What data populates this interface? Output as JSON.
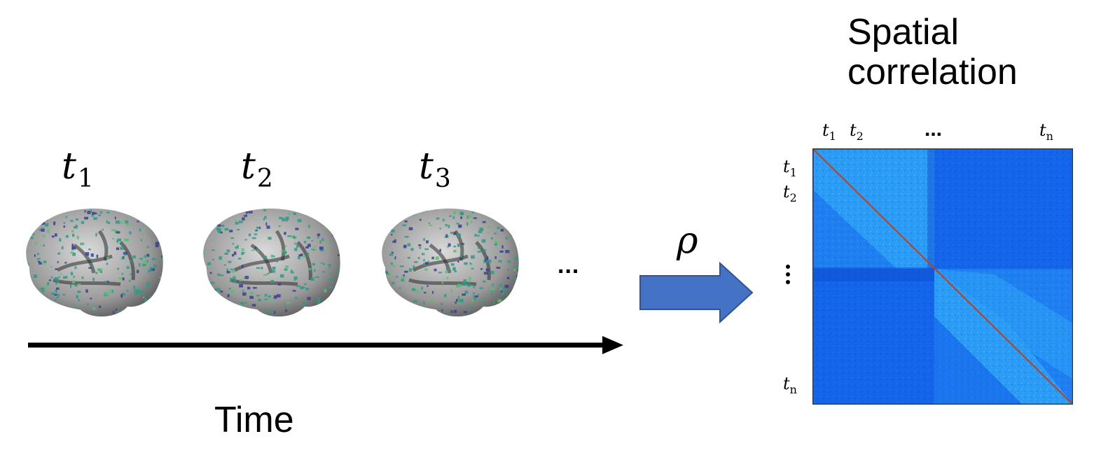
{
  "timepoints": [
    {
      "label": "t",
      "sub": "1"
    },
    {
      "label": "t",
      "sub": "2"
    },
    {
      "label": "t",
      "sub": "3"
    }
  ],
  "brain_continuation": "...",
  "time_axis_label": "Time",
  "operator_symbol": "ρ",
  "matrix": {
    "title_line1": "Spatial",
    "title_line2": "correlation",
    "top_labels": [
      {
        "label": "t",
        "sub": "1"
      },
      {
        "label": "t",
        "sub": "2"
      },
      {
        "label": "t",
        "sub": "n"
      }
    ],
    "top_ellipsis": "...",
    "left_labels": [
      {
        "label": "t",
        "sub": "1"
      },
      {
        "label": "t",
        "sub": "2"
      },
      {
        "label": "t",
        "sub": "n"
      }
    ]
  },
  "colors": {
    "arrow_fill": "#4472c4",
    "arrow_stroke": "#2f5597",
    "matrix_block_light": "#2a9cf5",
    "matrix_block_dark": "#1565ea",
    "matrix_diagonal": "#b5452a",
    "brain_overlay": "#2e9b87"
  }
}
